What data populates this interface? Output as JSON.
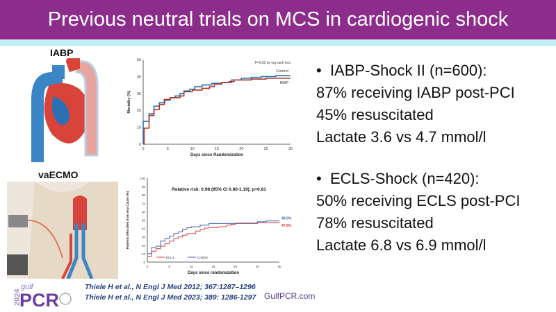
{
  "title": "Previous neutral trials on MCS in cardiogenic shock",
  "illustrations": {
    "iabp_label": "IABP",
    "ecmo_label": "vaECMO"
  },
  "bullets": {
    "b1": "IABP-Shock II (n=600):",
    "b1_l1": "87% receiving IABP post-PCI",
    "b1_l2": "45% resuscitated",
    "b1_l3": "Lactate 3.6 vs 4.7 mmol/l",
    "b2": "ECLS-Shock (n=420):",
    "b2_l1": "50% receiving ECLS post-PCI",
    "b2_l2": "78% resuscitated",
    "b2_l3": "Lactate 6.8 vs 6.9 mmol/l"
  },
  "footer": {
    "ref1": "Thiele H et al., N Engl J Med 2012; 367:1287–1296",
    "ref2": "Thiele H et al., N Engl J Med 2023; 389: 1286-1297",
    "site": "GulfPCR.com",
    "logo_text": "2024 gulf PCR"
  },
  "chart_data": [
    {
      "type": "line",
      "xlabel": "Days since Randomization",
      "ylabel": "Mortality (%)",
      "xlim": [
        0,
        30
      ],
      "ylim": [
        0,
        50
      ],
      "xticks": [
        0,
        5,
        10,
        15,
        20,
        25,
        30
      ],
      "yticks": [
        0,
        10,
        20,
        30,
        40,
        50
      ],
      "annotation": "P=0.92 by log-rank test",
      "step": true,
      "series": [
        {
          "name": "Control",
          "color": "#1a75b5",
          "points": [
            [
              0,
              0
            ],
            [
              0,
              13.5
            ],
            [
              1.2,
              18
            ],
            [
              2.2,
              22.5
            ],
            [
              3.3,
              24.5
            ],
            [
              4.4,
              26
            ],
            [
              5.5,
              27.5
            ],
            [
              6.5,
              28.5
            ],
            [
              7.5,
              30
            ],
            [
              8.3,
              31.5
            ],
            [
              9.5,
              32.5
            ],
            [
              10.5,
              34
            ],
            [
              12,
              35
            ],
            [
              14,
              36
            ],
            [
              16,
              36.5
            ],
            [
              18,
              38
            ],
            [
              20,
              39
            ],
            [
              22,
              39.5
            ],
            [
              24,
              40
            ],
            [
              27,
              40.5
            ],
            [
              30,
              40.5
            ]
          ]
        },
        {
          "name": "IABP",
          "color": "#b5342a",
          "points": [
            [
              0,
              0
            ],
            [
              0.2,
              9.5
            ],
            [
              1.2,
              17
            ],
            [
              2.2,
              20.5
            ],
            [
              3.3,
              23.5
            ],
            [
              4.3,
              26.5
            ],
            [
              5.5,
              27.5
            ],
            [
              7.5,
              28.5
            ],
            [
              8.3,
              31
            ],
            [
              10,
              32
            ],
            [
              12,
              33
            ],
            [
              13.5,
              34
            ],
            [
              14.5,
              35.5
            ],
            [
              16,
              36.5
            ],
            [
              17.5,
              37
            ],
            [
              18.5,
              38
            ],
            [
              22,
              38.5
            ],
            [
              25,
              39
            ],
            [
              30,
              39
            ]
          ]
        }
      ]
    },
    {
      "type": "line",
      "xlabel": "Days since randomization",
      "ylabel": "Patients Who Died from Any Cause (%)",
      "xlim": [
        0,
        30
      ],
      "ylim": [
        0,
        100
      ],
      "xticks": [
        0,
        5,
        10,
        15,
        20,
        25,
        30
      ],
      "yticks": [
        0,
        10,
        20,
        30,
        40,
        50,
        60,
        70,
        80,
        90,
        100
      ],
      "annotation": "Relative risk: 0.98 (95% CI 0.80-1.19), p=0.81",
      "step": true,
      "legend": "bottom-left",
      "series": [
        {
          "name": "ECLS",
          "color": "#e03c3c",
          "end_label": "47.8%",
          "points": [
            [
              0,
              7
            ],
            [
              1,
              13
            ],
            [
              2,
              16
            ],
            [
              3,
              19
            ],
            [
              4,
              22
            ],
            [
              5,
              25
            ],
            [
              6,
              28
            ],
            [
              7,
              30
            ],
            [
              8,
              32
            ],
            [
              9,
              34
            ],
            [
              11,
              37
            ],
            [
              12,
              39
            ],
            [
              13,
              40.5
            ],
            [
              14,
              41
            ],
            [
              16,
              42
            ],
            [
              18,
              44
            ],
            [
              19,
              45
            ],
            [
              20,
              46
            ],
            [
              25,
              47
            ],
            [
              30,
              47.8
            ]
          ]
        },
        {
          "name": "Control",
          "color": "#3d5fa8",
          "end_label": "49.0%",
          "points": [
            [
              0,
              10
            ],
            [
              1,
              17.5
            ],
            [
              2,
              19
            ],
            [
              3,
              25
            ],
            [
              4,
              28
            ],
            [
              5,
              31
            ],
            [
              6,
              34
            ],
            [
              7,
              36
            ],
            [
              8,
              39
            ],
            [
              9,
              41
            ],
            [
              10,
              42
            ],
            [
              12,
              44
            ],
            [
              14,
              46
            ],
            [
              20,
              46.5
            ],
            [
              25,
              48
            ],
            [
              27,
              49
            ],
            [
              30,
              49
            ]
          ]
        }
      ]
    }
  ]
}
